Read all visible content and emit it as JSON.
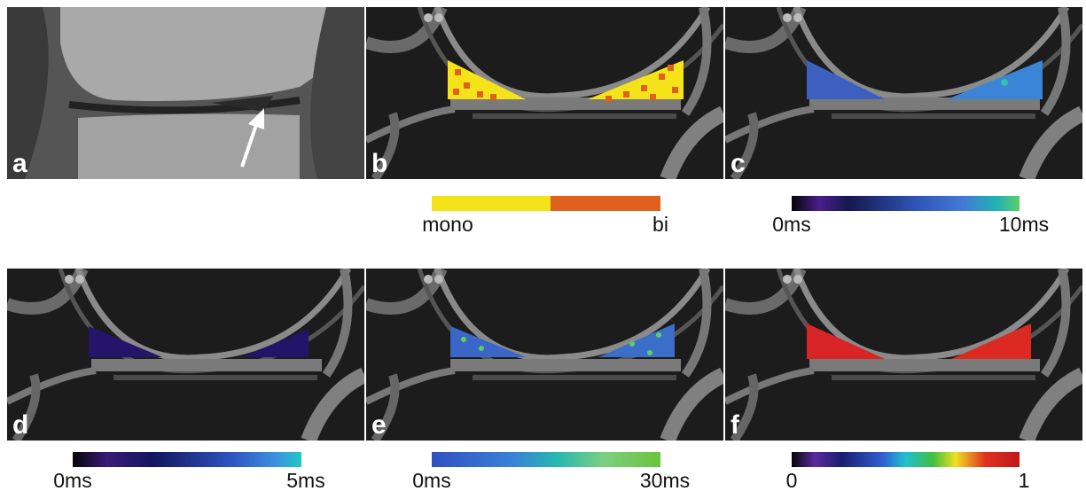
{
  "panels": [
    {
      "label": "a"
    },
    {
      "label": "b",
      "scale": {
        "low": "mono",
        "high": "bi"
      }
    },
    {
      "label": "c",
      "scale": {
        "low": "0ms",
        "high": "10ms"
      }
    },
    {
      "label": "d",
      "scale": {
        "low": "0ms",
        "high": "5ms"
      }
    },
    {
      "label": "e",
      "scale": {
        "low": "0ms",
        "high": "30ms"
      }
    },
    {
      "label": "f",
      "scale": {
        "low": "0",
        "high": "1"
      }
    }
  ]
}
